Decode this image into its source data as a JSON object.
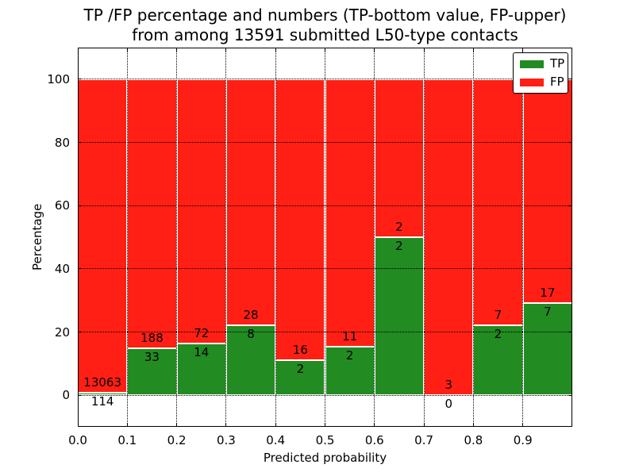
{
  "title": {
    "line1": "TP /FP percentage and numbers (TP-bottom value, FP-upper)",
    "line2": "from among 13591 submitted L50-type contacts"
  },
  "chart_data": {
    "type": "bar",
    "stacked": true,
    "title": "TP /FP percentage and numbers (TP-bottom value, FP-upper) from among 13591 submitted L50-type contacts",
    "xlabel": "Predicted probability",
    "ylabel": "Percentage",
    "xlim": [
      0,
      1
    ],
    "ylim": [
      -10,
      110
    ],
    "xticks": [
      "0.0",
      "0.1",
      "0.2",
      "0.3",
      "0.4",
      "0.5",
      "0.6",
      "0.7",
      "0.8",
      "0.9"
    ],
    "yticks": [
      0,
      20,
      40,
      60,
      80,
      100
    ],
    "grid": "dotted",
    "legend_position": "upper-right",
    "categories": [
      "0.0-0.1",
      "0.1-0.2",
      "0.2-0.3",
      "0.3-0.4",
      "0.4-0.5",
      "0.5-0.6",
      "0.6-0.7",
      "0.7-0.8",
      "0.8-0.9",
      "0.9-1.0"
    ],
    "series": [
      {
        "name": "TP",
        "color": "#228b22",
        "counts": [
          114,
          33,
          14,
          8,
          2,
          2,
          2,
          0,
          2,
          7
        ],
        "percent": [
          0.87,
          14.93,
          16.28,
          22.22,
          11.11,
          15.38,
          50,
          0,
          22.22,
          29.17
        ]
      },
      {
        "name": "FP",
        "color": "#ff1f14",
        "counts": [
          13063,
          188,
          72,
          28,
          16,
          11,
          2,
          3,
          7,
          17
        ],
        "percent": [
          99.13,
          85.07,
          83.72,
          77.78,
          88.89,
          84.62,
          50,
          100,
          77.78,
          70.83
        ]
      }
    ]
  },
  "colors": {
    "tp_green": "#228b22",
    "fp_red": "#ff1f14",
    "grid": "#000000",
    "background": "#ffffff"
  }
}
